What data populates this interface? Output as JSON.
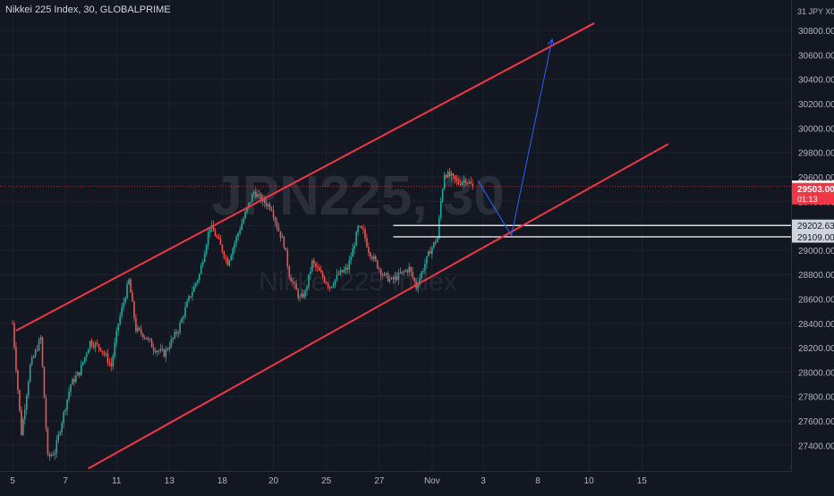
{
  "header": {
    "title": "Nikkei 225 Index, 30, GLOBALPRIME"
  },
  "watermark": {
    "symbol": "JPN225, 30",
    "name": "Nikkei 225 Index"
  },
  "price_axis": {
    "currency_label": "31 JPY X0"
  },
  "colors": {
    "background": "#131722",
    "up_candle": "#26a69a",
    "down_candle": "#ef5350",
    "channel": "#f23645",
    "projection": "#2962ff",
    "level": "#ffffff",
    "grid": "#1e222d"
  },
  "chart_data": {
    "type": "candlestick",
    "ylim": [
      27190,
      31050
    ],
    "y_ticks": [
      27400,
      27600,
      27800,
      28000,
      28200,
      28400,
      28600,
      28800,
      29000,
      29200,
      29400,
      29600,
      29800,
      30000,
      30200,
      30400,
      30600,
      30800
    ],
    "x_ticks": [
      {
        "label": "5",
        "i": 0
      },
      {
        "label": "7",
        "i": 30
      },
      {
        "label": "11",
        "i": 59
      },
      {
        "label": "13",
        "i": 89
      },
      {
        "label": "18",
        "i": 119
      },
      {
        "label": "20",
        "i": 148
      },
      {
        "label": "25",
        "i": 178
      },
      {
        "label": "27",
        "i": 208
      },
      {
        "label": "Nov",
        "i": 238
      },
      {
        "label": "3",
        "i": 267
      },
      {
        "label": "8",
        "i": 298
      },
      {
        "label": "10",
        "i": 327
      },
      {
        "label": "15",
        "i": 357
      }
    ],
    "path_points": [
      [
        0,
        28400
      ],
      [
        5,
        27500
      ],
      [
        10,
        28050
      ],
      [
        16,
        28280
      ],
      [
        20,
        27300
      ],
      [
        24,
        27350
      ],
      [
        28,
        27600
      ],
      [
        33,
        27900
      ],
      [
        38,
        28000
      ],
      [
        44,
        28250
      ],
      [
        50,
        28200
      ],
      [
        56,
        28050
      ],
      [
        60,
        28400
      ],
      [
        66,
        28750
      ],
      [
        70,
        28350
      ],
      [
        75,
        28300
      ],
      [
        80,
        28200
      ],
      [
        86,
        28150
      ],
      [
        90,
        28250
      ],
      [
        94,
        28350
      ],
      [
        100,
        28600
      ],
      [
        106,
        28800
      ],
      [
        112,
        29200
      ],
      [
        116,
        29100
      ],
      [
        122,
        28900
      ],
      [
        127,
        29100
      ],
      [
        132,
        29300
      ],
      [
        137,
        29480
      ],
      [
        142,
        29400
      ],
      [
        147,
        29350
      ],
      [
        150,
        29200
      ],
      [
        154,
        29050
      ],
      [
        157,
        28800
      ],
      [
        160,
        28700
      ],
      [
        163,
        28600
      ],
      [
        166,
        28650
      ],
      [
        170,
        28900
      ],
      [
        175,
        28800
      ],
      [
        180,
        28700
      ],
      [
        185,
        28800
      ],
      [
        190,
        28850
      ],
      [
        193,
        29000
      ],
      [
        196,
        29180
      ],
      [
        199,
        29150
      ],
      [
        202,
        29000
      ],
      [
        206,
        28900
      ],
      [
        210,
        28800
      ],
      [
        215,
        28750
      ],
      [
        220,
        28800
      ],
      [
        225,
        28850
      ],
      [
        229,
        28700
      ],
      [
        233,
        28850
      ],
      [
        237,
        29000
      ],
      [
        241,
        29100
      ],
      [
        243,
        29400
      ],
      [
        245,
        29630
      ],
      [
        249,
        29600
      ],
      [
        253,
        29550
      ],
      [
        257,
        29580
      ],
      [
        261,
        29520
      ]
    ],
    "last_price": 29522.5,
    "bid_price": 29503.0,
    "countdown": "01:13",
    "levels": [
      {
        "value": 29202.63,
        "label": "29202.63"
      },
      {
        "value": 29109.0,
        "label": "29109.00"
      }
    ],
    "channel_upper": [
      [
        2,
        28340
      ],
      [
        330,
        30860
      ]
    ],
    "channel_lower": [
      [
        43,
        27210
      ],
      [
        372,
        29870
      ]
    ],
    "projection": [
      [
        264,
        29570
      ],
      [
        283,
        29120
      ],
      [
        306,
        30720
      ]
    ]
  }
}
